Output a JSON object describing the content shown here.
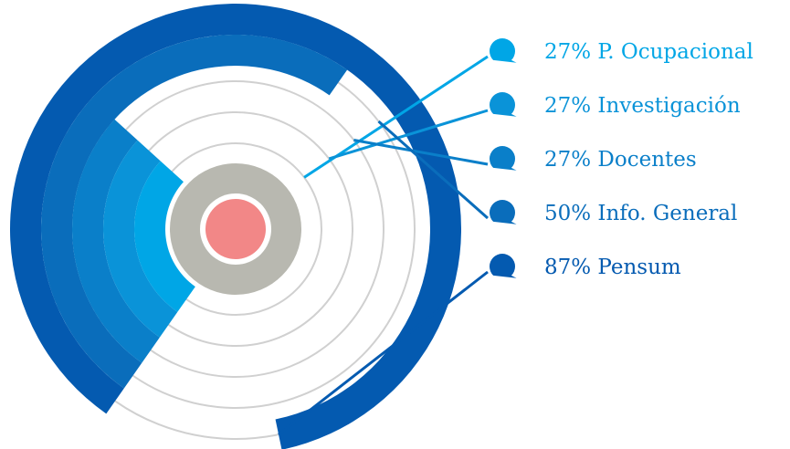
{
  "chart_data": {
    "type": "radial-bar",
    "title": "",
    "series": [
      {
        "label": "27% P. Ocupacional",
        "value": 27,
        "color": "#00a6e6"
      },
      {
        "label": "27% Investigación",
        "value": 27,
        "color": "#0a93d8"
      },
      {
        "label": "27% Docentes",
        "value": 27,
        "color": "#0a7fc9"
      },
      {
        "label": "50% Info. General",
        "value": 50,
        "color": "#0a6dbb"
      },
      {
        "label": "87% Pensum",
        "value": 87,
        "color": "#045ab0"
      }
    ],
    "center_colors": {
      "core": "#f28787",
      "hub": "#b8b8b0",
      "track": "#d0d0d0"
    },
    "max_value": 100
  }
}
